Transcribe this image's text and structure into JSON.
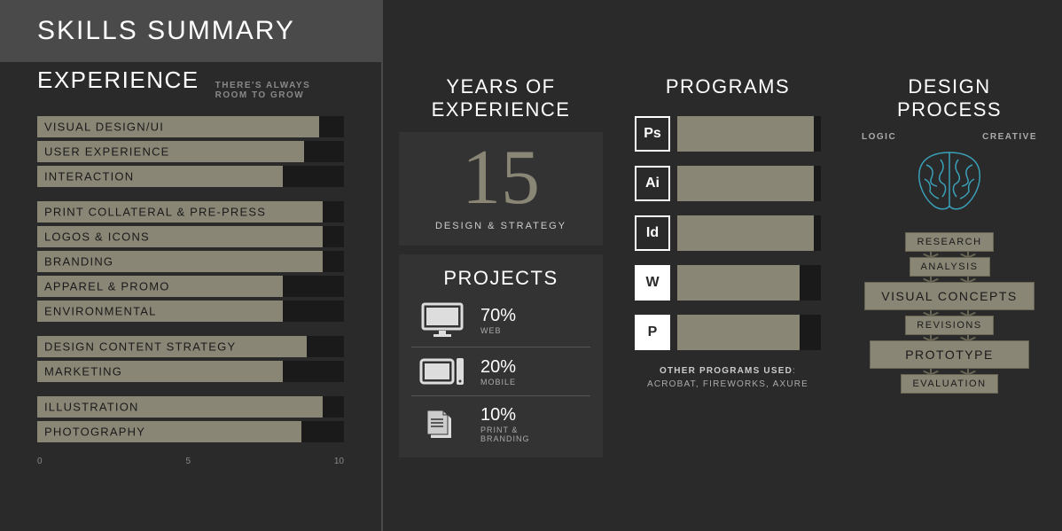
{
  "header": {
    "title": "SKILLS SUMMARY"
  },
  "experience": {
    "title": "EXPERIENCE",
    "subtitle": "THERE'S ALWAYS ROOM TO GROW",
    "max": 10,
    "axis": [
      "0",
      "5",
      "10"
    ],
    "groups": [
      [
        {
          "label": "VISUAL DESIGN/UI",
          "value": 9.2
        },
        {
          "label": "USER EXPERIENCE",
          "value": 8.7
        },
        {
          "label": "INTERACTION",
          "value": 8.0
        }
      ],
      [
        {
          "label": "PRINT COLLATERAL & PRE-PRESS",
          "value": 9.3
        },
        {
          "label": "LOGOS & ICONS",
          "value": 9.3
        },
        {
          "label": "BRANDING",
          "value": 9.3
        },
        {
          "label": "APPAREL & PROMO",
          "value": 8.0
        },
        {
          "label": "ENVIRONMENTAL",
          "value": 8.0
        }
      ],
      [
        {
          "label": "DESIGN CONTENT STRATEGY",
          "value": 8.8
        },
        {
          "label": "MARKETING",
          "value": 8.0
        }
      ],
      [
        {
          "label": "ILLUSTRATION",
          "value": 9.3
        },
        {
          "label": "PHOTOGRAPHY",
          "value": 8.6
        }
      ]
    ]
  },
  "years": {
    "title": "YEARS OF EXPERIENCE",
    "number": "15",
    "subtitle": "DESIGN & STRATEGY"
  },
  "projects": {
    "title": "PROJECTS",
    "items": [
      {
        "pct": "70%",
        "label": "WEB"
      },
      {
        "pct": "20%",
        "label": "MOBILE"
      },
      {
        "pct": "10%",
        "label": "PRINT & BRANDING"
      }
    ]
  },
  "programs": {
    "title": "PROGRAMS",
    "items": [
      {
        "code": "Ps",
        "value": 95,
        "bordered": true
      },
      {
        "code": "Ai",
        "value": 95,
        "bordered": true
      },
      {
        "code": "Id",
        "value": 95,
        "bordered": true
      },
      {
        "code": "W",
        "value": 85,
        "bordered": false
      },
      {
        "code": "P",
        "value": 85,
        "bordered": false
      }
    ],
    "footer_bold": "OTHER PROGRAMS USED",
    "footer_rest": "ACROBAT, FIREWORKS, AXURE"
  },
  "process": {
    "title": "DESIGN PROCESS",
    "left": "LOGIC",
    "right": "CREATIVE",
    "brain_color": "#3aa0b8",
    "steps": [
      {
        "label": "RESEARCH",
        "size": "small"
      },
      {
        "label": "ANALYSIS",
        "size": "small"
      },
      {
        "label": "VISUAL CONCEPTS",
        "size": "big"
      },
      {
        "label": "REVISIONS",
        "size": "small"
      },
      {
        "label": "PROTOTYPE",
        "size": "big"
      },
      {
        "label": "EVALUATION",
        "size": "small"
      }
    ]
  },
  "colors": {
    "bar_fill": "#8a8676",
    "bar_bg": "#1a1a1a",
    "page_bg": "#2a2a2a",
    "header_bg": "#4a4a4a"
  }
}
